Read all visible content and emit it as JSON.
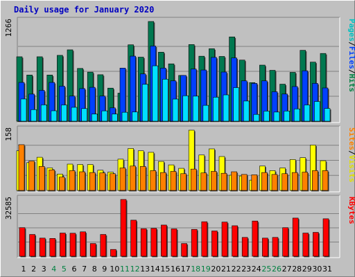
{
  "title": "Daily usage for January 2020",
  "chart_data": [
    {
      "type": "bar",
      "panel": "top",
      "ymax_label": "1266",
      "ylim": [
        0,
        1266
      ],
      "side_label": [
        "Pages",
        "/",
        "Files",
        "/",
        "Hits"
      ],
      "side_label_colors": [
        "#00c0c0",
        "#000000",
        "#0040ff",
        "#000000",
        "#008040"
      ],
      "categories": [
        "1",
        "2",
        "3",
        "4",
        "5",
        "6",
        "7",
        "8",
        "9",
        "10",
        "11",
        "12",
        "13",
        "14",
        "15",
        "16",
        "17",
        "18",
        "19",
        "20",
        "21",
        "22",
        "23",
        "24",
        "25",
        "26",
        "27",
        "28",
        "29",
        "30",
        "31"
      ],
      "weekend_days": [
        "4",
        "5",
        "11",
        "12",
        "18",
        "19",
        "25",
        "26"
      ],
      "series": [
        {
          "name": "Hits",
          "color": "#007850",
          "values": [
            818,
            586,
            818,
            586,
            836,
            906,
            670,
            623,
            590,
            420,
            356,
            970,
            813,
            1266,
            876,
            728,
            581,
            973,
            825,
            920,
            822,
            1070,
            776,
            490,
            712,
            646,
            470,
            620,
            900,
            750,
            860
          ]
        },
        {
          "name": "Files",
          "color": "#0040ff",
          "values": [
            492,
            344,
            391,
            492,
            445,
            319,
            414,
            430,
            319,
            169,
            674,
            826,
            600,
            954,
            674,
            512,
            581,
            662,
            650,
            810,
            624,
            803,
            512,
            480,
            512,
            374,
            345,
            440,
            640,
            480,
            422
          ]
        },
        {
          "name": "Pages",
          "color": "#00e0ff",
          "values": [
            282,
            147,
            207,
            132,
            206,
            176,
            160,
            91,
            131,
            91,
            113,
            117,
            468,
            703,
            533,
            281,
            323,
            318,
            201,
            304,
            334,
            426,
            256,
            86,
            128,
            116,
            129,
            156,
            206,
            250,
            162
          ]
        }
      ]
    },
    {
      "type": "bar",
      "panel": "middle",
      "ymax_label": "158",
      "ylim": [
        0,
        158
      ],
      "side_label": [
        "Sites",
        "/",
        "Visits"
      ],
      "side_label_colors": [
        "#ff8000",
        "#000000",
        "#e0e000"
      ],
      "categories": [
        "1",
        "2",
        "3",
        "4",
        "5",
        "6",
        "7",
        "8",
        "9",
        "10",
        "11",
        "12",
        "13",
        "14",
        "15",
        "16",
        "17",
        "18",
        "19",
        "20",
        "21",
        "22",
        "23",
        "24",
        "25",
        "26",
        "27",
        "28",
        "29",
        "30",
        "31"
      ],
      "series": [
        {
          "name": "Visits",
          "color": "#ffff00",
          "values": [
            104,
            73,
            87,
            59,
            43,
            69,
            68,
            68,
            53,
            48,
            82,
            110,
            104,
            100,
            76,
            67,
            58,
            158,
            93,
            109,
            89,
            40,
            38,
            27,
            64,
            52,
            59,
            81,
            86,
            119,
            78
          ]
        },
        {
          "name": "Sites",
          "color": "#ff8000",
          "values": [
            120,
            77,
            63,
            54,
            35,
            52,
            49,
            47,
            46,
            44,
            59,
            64,
            63,
            52,
            47,
            50,
            44,
            56,
            46,
            50,
            45,
            49,
            42,
            41,
            47,
            42,
            44,
            47,
            48,
            52,
            52
          ]
        }
      ]
    },
    {
      "type": "bar",
      "panel": "bottom",
      "ymax_label": "32585",
      "ylim": [
        0,
        32585
      ],
      "side_label": [
        "KBytes"
      ],
      "side_label_colors": [
        "#ff0000"
      ],
      "categories": [
        "1",
        "2",
        "3",
        "4",
        "5",
        "6",
        "7",
        "8",
        "9",
        "10",
        "11",
        "12",
        "13",
        "14",
        "15",
        "16",
        "17",
        "18",
        "19",
        "20",
        "21",
        "22",
        "23",
        "24",
        "25",
        "26",
        "27",
        "28",
        "29",
        "30",
        "31"
      ],
      "series": [
        {
          "name": "KBytes",
          "color": "#ff0000",
          "values": [
            16400,
            12500,
            10400,
            10200,
            13300,
            13200,
            14000,
            7300,
            12500,
            3900,
            32585,
            20700,
            15800,
            16000,
            17900,
            15700,
            7300,
            15400,
            19800,
            14500,
            19600,
            17500,
            10800,
            20200,
            10400,
            10800,
            16400,
            21900,
            13300,
            13700,
            21500
          ]
        }
      ]
    }
  ]
}
